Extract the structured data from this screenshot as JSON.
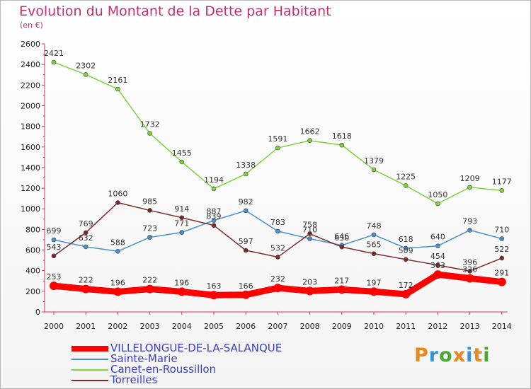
{
  "title": "Evolution du Montant de la Dette par Habitant",
  "subtitle": "(en €)",
  "brand": "Proxiti",
  "chart_data": {
    "type": "line",
    "title": "Evolution du Montant de la Dette par Habitant",
    "subtitle": "(en €)",
    "x": [
      "2000",
      "2001",
      "2002",
      "2003",
      "2004",
      "2005",
      "2006",
      "2007",
      "2008",
      "2009",
      "2010",
      "2011",
      "2012",
      "2013",
      "2014"
    ],
    "ylim": [
      0,
      2600
    ],
    "yticks": [
      "0",
      "200",
      "400",
      "600",
      "800",
      "1000",
      "1200",
      "1400",
      "1600",
      "1800",
      "2000",
      "2200",
      "2400",
      "2600"
    ],
    "grid": false,
    "legend_position": "bottom-left",
    "series": [
      {
        "name": "VILLELONGUE-DE-LA-SALANQUE",
        "color": "#ff0000",
        "values": [
          253,
          222,
          196,
          222,
          196,
          163,
          166,
          232,
          203,
          217,
          197,
          172,
          363,
          326,
          291
        ],
        "labels": [
          "253",
          "222",
          "196",
          "222",
          "196",
          "163",
          "166",
          "232",
          "203",
          "217",
          "197",
          "172",
          "363",
          "326",
          "291"
        ]
      },
      {
        "name": "Sainte-Marie",
        "color": "#4a90d0",
        "values": [
          699,
          632,
          588,
          723,
          771,
          887,
          982,
          783,
          710,
          646,
          748,
          618,
          640,
          793,
          710
        ],
        "labels": [
          "699",
          "632",
          "588",
          "723",
          "771",
          "887",
          "982",
          "783",
          "710",
          "646",
          "748",
          "618",
          "640",
          "793",
          "710"
        ]
      },
      {
        "name": "Canet-en-Roussillon",
        "color": "#80d040",
        "values": [
          2421,
          2302,
          2161,
          1732,
          1455,
          1194,
          1338,
          1591,
          1662,
          1618,
          1379,
          1225,
          1050,
          1209,
          1177
        ],
        "labels": [
          "2421",
          "2302",
          "2161",
          "1732",
          "1455",
          "1194",
          "1338",
          "1591",
          "1662",
          "1618",
          "1379",
          "1225",
          "1050",
          "1209",
          "1177"
        ]
      },
      {
        "name": "Torreilles",
        "color": "#7a2a2a",
        "values": [
          543,
          769,
          1060,
          985,
          914,
          839,
          597,
          532,
          758,
          630,
          565,
          509,
          454,
          396,
          522
        ],
        "labels": [
          "543",
          "769",
          "1060",
          "985",
          "914",
          "839",
          "597",
          "532",
          "758",
          "630",
          "565",
          "509",
          "454",
          "396",
          "522"
        ]
      }
    ]
  }
}
